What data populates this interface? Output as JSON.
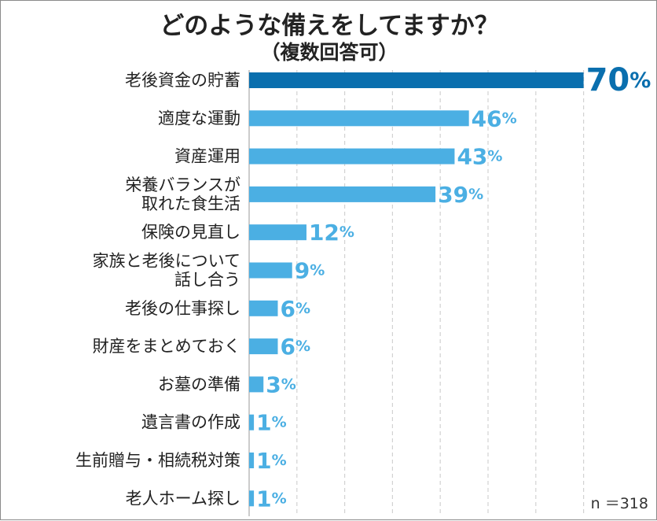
{
  "title": "どのような備えをしてますか？",
  "subtitle": "（複数回答可）",
  "footnote": "n ＝318",
  "colors": {
    "highlight": "#0a6fae",
    "bar": "#4bafe3",
    "text": "#222222"
  },
  "chart_data": {
    "type": "bar",
    "orientation": "horizontal",
    "title": "どのような備えをしてますか？",
    "subtitle": "（複数回答可）",
    "unit": "%",
    "xlim": [
      0,
      100
    ],
    "grid": true,
    "categories": [
      [
        "老後資金の貯蓄"
      ],
      [
        "適度な運動"
      ],
      [
        "資産運用"
      ],
      [
        "栄養バランスが",
        "取れた食生活"
      ],
      [
        "保険の見直し"
      ],
      [
        "家族と老後について",
        "話し合う"
      ],
      [
        "老後の仕事探し"
      ],
      [
        "財産をまとめておく"
      ],
      [
        "お墓の準備"
      ],
      [
        "遺言書の作成"
      ],
      [
        "生前贈与・相続税対策"
      ],
      [
        "老人ホーム探し"
      ]
    ],
    "values": [
      70,
      46,
      43,
      39,
      12,
      9,
      6,
      6,
      3,
      1,
      1,
      1
    ],
    "highlight_index": 0
  }
}
